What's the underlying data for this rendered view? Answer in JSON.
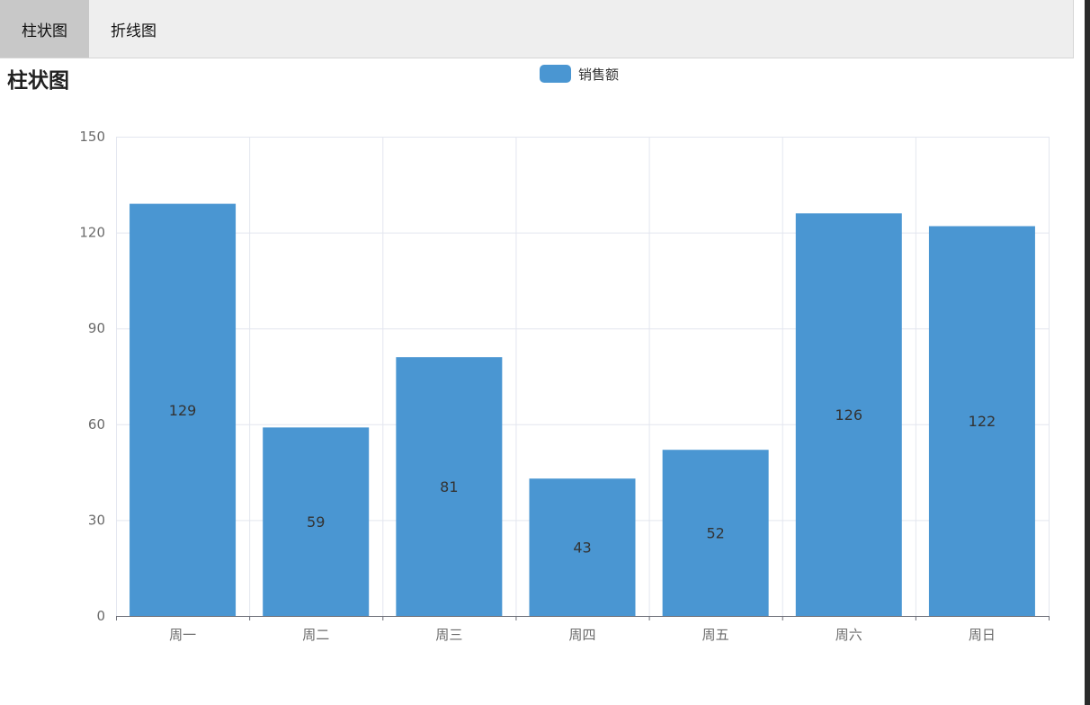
{
  "tabs": [
    {
      "label": "柱状图",
      "active": true
    },
    {
      "label": "折线图",
      "active": false
    }
  ],
  "title": "柱状图",
  "legend": {
    "label": "销售额",
    "color": "#4a96d2"
  },
  "chart_data": {
    "type": "bar",
    "title": "柱状图",
    "categories": [
      "周一",
      "周二",
      "周三",
      "周四",
      "周五",
      "周六",
      "周日"
    ],
    "series": [
      {
        "name": "销售额",
        "values": [
          129,
          59,
          81,
          43,
          52,
          126,
          122
        ],
        "color": "#4a96d2"
      }
    ],
    "ylim": [
      0,
      150
    ],
    "yticks": [
      0,
      30,
      60,
      90,
      120,
      150
    ],
    "grid": true,
    "legend_position": "top-center",
    "data_labels": true
  }
}
